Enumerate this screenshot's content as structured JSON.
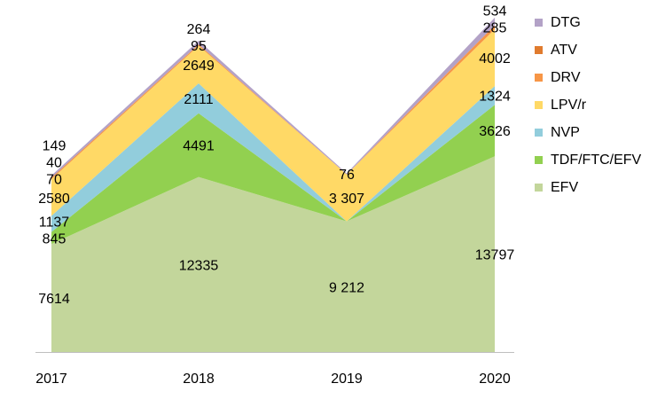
{
  "chart_data": {
    "type": "area",
    "stacked": true,
    "title": "",
    "xlabel": "",
    "ylabel": "",
    "categories": [
      "2017",
      "2018",
      "2019",
      "2020"
    ],
    "ylim": [
      0,
      24000
    ],
    "grid": false,
    "legend_position": "right",
    "series": [
      {
        "name": "EFV",
        "color": "#c3d69b",
        "values": [
          7614,
          12335,
          9212,
          13797
        ],
        "labels": [
          "7614",
          "12335",
          "9 212",
          "13797"
        ]
      },
      {
        "name": "TDF/FTC/EFV",
        "color": "#92d050",
        "values": [
          845,
          4491,
          0,
          3626
        ],
        "labels": [
          "845",
          "4491",
          "",
          "3626"
        ]
      },
      {
        "name": "NVP",
        "color": "#92cddc",
        "values": [
          1137,
          2111,
          0,
          1324
        ],
        "labels": [
          "1137",
          "2111",
          "",
          "1324"
        ]
      },
      {
        "name": "LPV/r",
        "color": "#ffd966",
        "values": [
          2580,
          2649,
          3307,
          4002
        ],
        "labels": [
          "2580",
          "2649",
          "3 307",
          "4002"
        ]
      },
      {
        "name": "DRV",
        "color": "#f79646",
        "values": [
          70,
          95,
          0,
          285
        ],
        "labels": [
          "70",
          "95",
          "",
          "285"
        ]
      },
      {
        "name": "ATV",
        "color": "#e07b2e",
        "values": [
          40,
          0,
          0,
          0
        ],
        "labels": [
          "40",
          "",
          "",
          ""
        ]
      },
      {
        "name": "DTG",
        "color": "#b3a2c7",
        "values": [
          149,
          264,
          76,
          534
        ],
        "labels": [
          "149",
          "264",
          "76",
          "534"
        ]
      }
    ]
  }
}
